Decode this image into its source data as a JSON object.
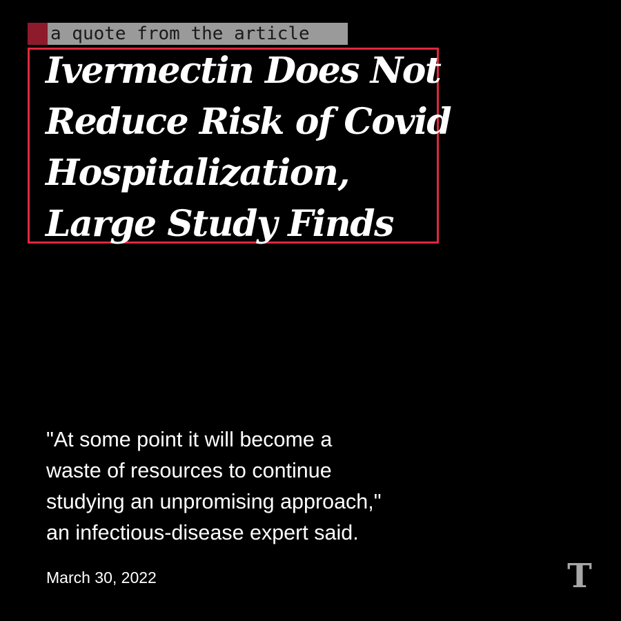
{
  "annotation": {
    "label": "a quote from the article",
    "swatch_color": "#8e1b2c",
    "box_color": "#e0283f"
  },
  "headline": {
    "lines": [
      "Ivermectin Does Not",
      "Reduce Risk of Covid",
      "Hospitalization,",
      "Large Study Finds"
    ]
  },
  "quote": {
    "lines": [
      "\"At some point it will become a",
      "waste of resources to continue",
      "studying an unpromising approach,\"",
      "an infectious-disease expert said."
    ]
  },
  "date": "March 30, 2022",
  "logo": {
    "icon": "nyt-t-logo-icon",
    "glyph": "T"
  }
}
